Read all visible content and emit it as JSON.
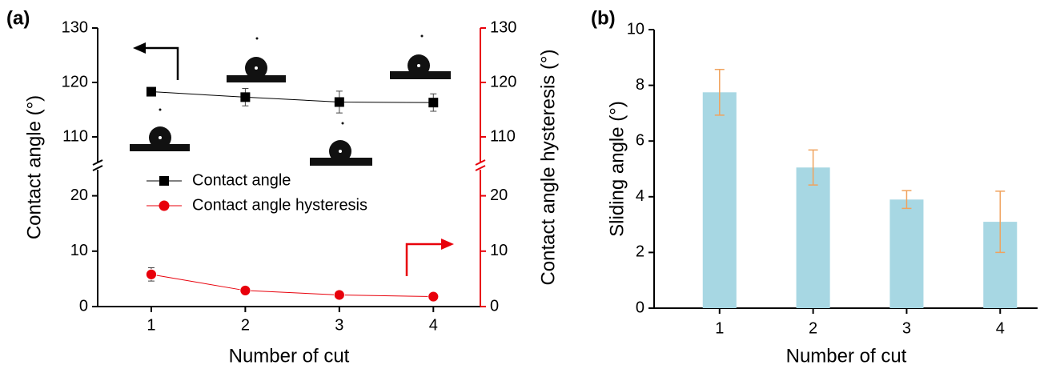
{
  "chart_data": [
    {
      "type": "line",
      "panel_label": "(a)",
      "x_label": "Number of cut",
      "y_label": "Contact angle (°)",
      "y2_label": "Contact angle hysteresis (°)",
      "x": [
        1,
        2,
        3,
        4
      ],
      "xlim": [
        0.43,
        4.5
      ],
      "xticks": [
        1,
        2,
        3,
        4
      ],
      "ylim": [
        0,
        130
      ],
      "y_break": [
        25,
        105
      ],
      "yticks": [
        0,
        10,
        20,
        110,
        120,
        130
      ],
      "y2lim": [
        0,
        130
      ],
      "y2_break": [
        25,
        105
      ],
      "y2ticks": [
        0,
        10,
        20,
        110,
        120,
        130
      ],
      "y2_axis_color": "#e8000b",
      "legend": "center-left",
      "series": [
        {
          "name": "Contact angle",
          "color": "#000000",
          "marker": "square",
          "axis": "y",
          "values": [
            118.3,
            117.3,
            116.4,
            116.3
          ],
          "errors": [
            0.3,
            1.6,
            2.0,
            1.6
          ]
        },
        {
          "name": "Contact angle hysteresis",
          "color": "#e8000b",
          "marker": "circle",
          "axis": "y2",
          "values": [
            5.8,
            2.9,
            2.1,
            1.8
          ],
          "errors": [
            1.2,
            0.5,
            0.3,
            0.3
          ]
        }
      ]
    },
    {
      "type": "bar",
      "panel_label": "(b)",
      "x_label": "Number of cut",
      "y_label": "Sliding angle (°)",
      "x": [
        1,
        2,
        3,
        4
      ],
      "xlim": [
        0.3,
        4.4
      ],
      "xticks": [
        1,
        2,
        3,
        4
      ],
      "ylim": [
        0,
        10
      ],
      "yticks": [
        0,
        2,
        4,
        6,
        8,
        10
      ],
      "color": "#a7d7e3",
      "error_color": "#f0a35e",
      "values": [
        7.75,
        5.05,
        3.9,
        3.1
      ],
      "errors": [
        0.82,
        0.63,
        0.32,
        1.1
      ]
    }
  ]
}
